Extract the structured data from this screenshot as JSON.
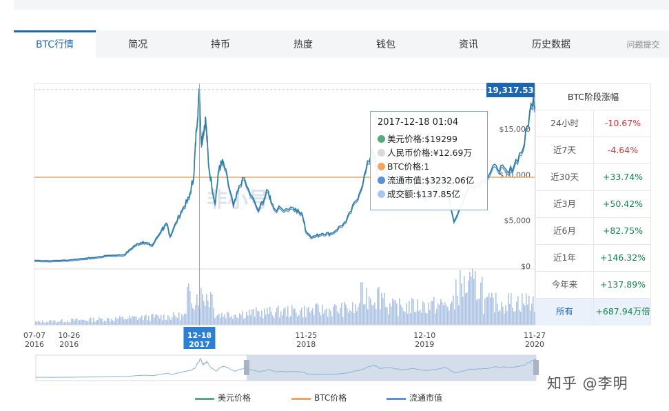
{
  "tabs": [
    "BTC行情",
    "简况",
    "持币",
    "热度",
    "钱包",
    "资讯",
    "历史数据",
    "问题提交"
  ],
  "active_tab": 0,
  "tooltip": {
    "date": "2017-12-18 01:04",
    "rows": [
      {
        "label": "美元价格:$19299",
        "color": "#5aa87e"
      },
      {
        "label": "人民币价格:¥12.69万",
        "color": "#d9d9d9"
      },
      {
        "label": "BTC价格:1",
        "color": "#f2a462"
      },
      {
        "label": "流通市值:$3232.06亿",
        "color": "#5b8fd9"
      },
      {
        "label": "成交额:$137.85亿",
        "color": "#a7c5f0"
      }
    ]
  },
  "price_badge": "19,317.53",
  "side_table": {
    "title": "BTC阶段涨幅",
    "rows": [
      {
        "label": "24小时",
        "value": "-10.67%",
        "dir": "neg"
      },
      {
        "label": "近7天",
        "value": "-4.64%",
        "dir": "neg"
      },
      {
        "label": "近30天",
        "value": "+33.74%",
        "dir": "pos"
      },
      {
        "label": "近3月",
        "value": "+50.42%",
        "dir": "pos"
      },
      {
        "label": "近6月",
        "value": "+82.75%",
        "dir": "pos"
      },
      {
        "label": "近1年",
        "value": "+146.32%",
        "dir": "pos"
      },
      {
        "label": "今年来",
        "value": "+137.89%",
        "dir": "pos"
      },
      {
        "label": "所有",
        "value": "+687.94万倍",
        "dir": "pos",
        "selected": true
      }
    ]
  },
  "chart_data": {
    "type": "line",
    "y_ticks": [
      "$0",
      "$5,000",
      "$10,000",
      "$15,000"
    ],
    "y_values": [
      0,
      5000,
      10000,
      15000
    ],
    "ylim": [
      0,
      19317.53
    ],
    "x_ticks": [
      {
        "date": "07-07",
        "year": "2016"
      },
      {
        "date": "10-26",
        "year": "2016"
      },
      {
        "date": "12-18",
        "year": "2017",
        "highlight": true
      },
      {
        "date": "11-25",
        "year": "2018"
      },
      {
        "date": "12-10",
        "year": "2019"
      },
      {
        "date": "11-27",
        "year": "2020"
      }
    ],
    "crosshair_date": "12-18",
    "btc_price_level": 1,
    "series": [
      {
        "name": "美元价格",
        "color": "#5aa87e",
        "points": [
          [
            "2016-07-07",
            640
          ],
          [
            "2016-09-01",
            600
          ],
          [
            "2016-10-26",
            680
          ],
          [
            "2016-12-20",
            890
          ],
          [
            "2017-01-15",
            950
          ],
          [
            "2017-03-01",
            1200
          ],
          [
            "2017-04-20",
            1250
          ],
          [
            "2017-05-25",
            2300
          ],
          [
            "2017-06-20",
            2700
          ],
          [
            "2017-07-20",
            2300
          ],
          [
            "2017-08-20",
            4100
          ],
          [
            "2017-09-05",
            4600
          ],
          [
            "2017-09-15",
            3300
          ],
          [
            "2017-10-20",
            6000
          ],
          [
            "2017-11-15",
            7500
          ],
          [
            "2017-11-30",
            10000
          ],
          [
            "2017-12-08",
            15000
          ],
          [
            "2017-12-18",
            19299
          ],
          [
            "2017-12-24",
            13500
          ],
          [
            "2017-12-29",
            14500
          ],
          [
            "2018-01-07",
            16200
          ],
          [
            "2018-01-17",
            11000
          ],
          [
            "2018-02-06",
            6900
          ],
          [
            "2018-02-20",
            11000
          ],
          [
            "2018-03-05",
            11400
          ],
          [
            "2018-04-06",
            6600
          ],
          [
            "2018-05-05",
            9700
          ],
          [
            "2018-06-25",
            6100
          ],
          [
            "2018-07-25",
            8300
          ],
          [
            "2018-08-15",
            6300
          ],
          [
            "2018-10-15",
            6400
          ],
          [
            "2018-11-14",
            5600
          ],
          [
            "2018-11-25",
            3800
          ],
          [
            "2018-12-15",
            3200
          ],
          [
            "2019-01-15",
            3600
          ],
          [
            "2019-02-15",
            3600
          ],
          [
            "2019-04-02",
            4900
          ],
          [
            "2019-05-15",
            8000
          ],
          [
            "2019-06-26",
            12900
          ],
          [
            "2019-07-15",
            9500
          ],
          [
            "2019-08-15",
            10300
          ],
          [
            "2019-09-25",
            8000
          ],
          [
            "2019-10-26",
            9400
          ],
          [
            "2019-12-10",
            7300
          ],
          [
            "2020-02-12",
            10300
          ],
          [
            "2020-03-13",
            4900
          ],
          [
            "2020-04-30",
            8700
          ],
          [
            "2020-06-15",
            9400
          ],
          [
            "2020-07-27",
            11000
          ],
          [
            "2020-09-05",
            10200
          ],
          [
            "2020-10-21",
            12900
          ],
          [
            "2020-11-24",
            19000
          ],
          [
            "2020-11-27",
            17200
          ]
        ]
      },
      {
        "name": "BTC价格",
        "color": "#f2a462"
      },
      {
        "name": "流通市值",
        "color": "#5b8fd9"
      }
    ]
  },
  "legend": [
    {
      "name": "美元价格",
      "color": "#5aa87e"
    },
    {
      "name": "BTC价格",
      "color": "#f2a462"
    },
    {
      "name": "流通市值",
      "color": "#5b8fd9"
    }
  ],
  "watermark_chart": "非小号",
  "watermark_site": "知乎 @李明"
}
